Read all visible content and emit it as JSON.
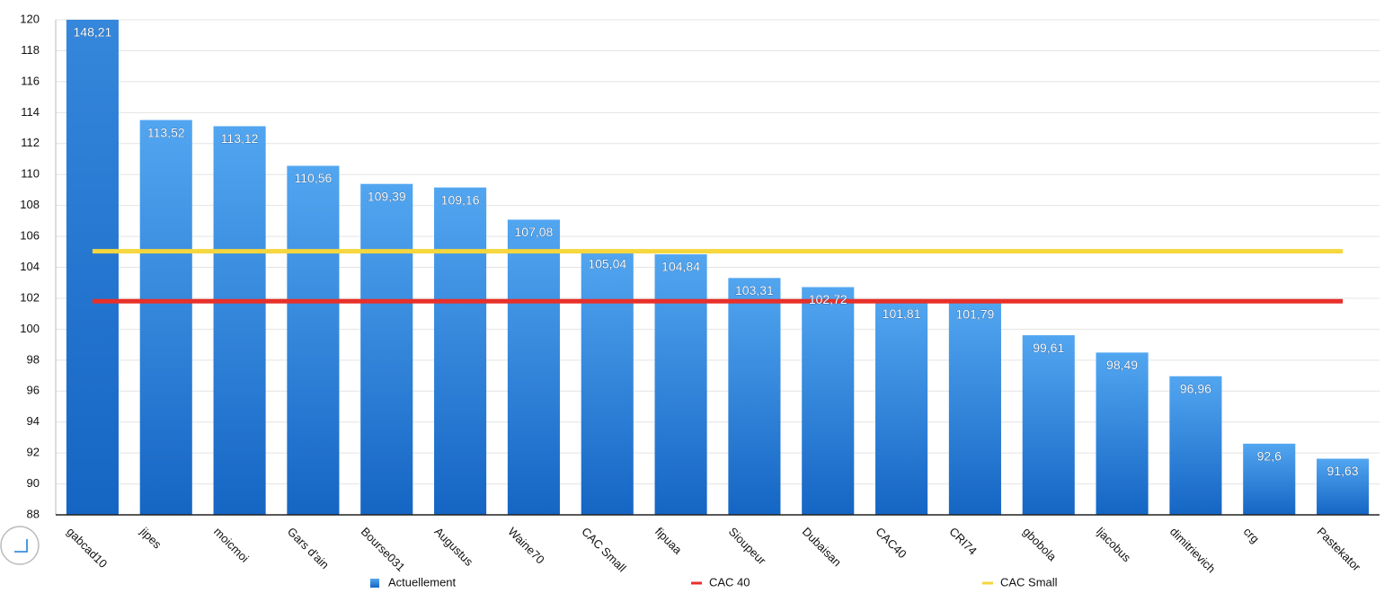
{
  "chart_data": {
    "type": "bar",
    "categories": [
      "gabcad10",
      "jipes",
      "moicmoi",
      "Gars d'ain",
      "Bourse031",
      "Augustus",
      "Waine70",
      "CAC Small",
      "fipuaa",
      "Sioupeur",
      "Dubaisan",
      "CAC40",
      "CRI74",
      "gbobola",
      "ljacobus",
      "dimitrievich",
      "crg",
      "Pastekator"
    ],
    "series": [
      {
        "name": "Actuellement",
        "type": "bar",
        "color": "#2f86dc",
        "values": [
          148.21,
          113.52,
          113.12,
          110.56,
          109.39,
          109.16,
          107.08,
          105.04,
          104.84,
          103.31,
          102.72,
          101.81,
          101.79,
          99.61,
          98.49,
          96.96,
          92.6,
          91.63
        ],
        "value_labels": [
          "148,21",
          "113,52",
          "113,12",
          "110,56",
          "109,39",
          "109,16",
          "107,08",
          "105,04",
          "104,84",
          "103,31",
          "102,72",
          "101,81",
          "101,79",
          "99,61",
          "98,49",
          "96,96",
          "92,6",
          "91,63"
        ]
      },
      {
        "name": "CAC 40",
        "type": "line",
        "color": "#e8302a",
        "values": [
          101.81,
          101.81,
          101.81,
          101.81,
          101.81,
          101.81,
          101.81,
          101.81,
          101.81,
          101.81,
          101.81,
          101.81,
          101.81,
          101.81,
          101.81,
          101.81,
          101.81,
          101.81
        ]
      },
      {
        "name": "CAC Small",
        "type": "line",
        "color": "#f5d63d",
        "values": [
          105.04,
          105.04,
          105.04,
          105.04,
          105.04,
          105.04,
          105.04,
          105.04,
          105.04,
          105.04,
          105.04,
          105.04,
          105.04,
          105.04,
          105.04,
          105.04,
          105.04,
          105.04
        ]
      }
    ],
    "ylim": [
      88,
      120
    ],
    "yticks": [
      88,
      90,
      92,
      94,
      96,
      98,
      100,
      102,
      104,
      106,
      108,
      110,
      112,
      114,
      116,
      118,
      120
    ],
    "grid": true
  }
}
